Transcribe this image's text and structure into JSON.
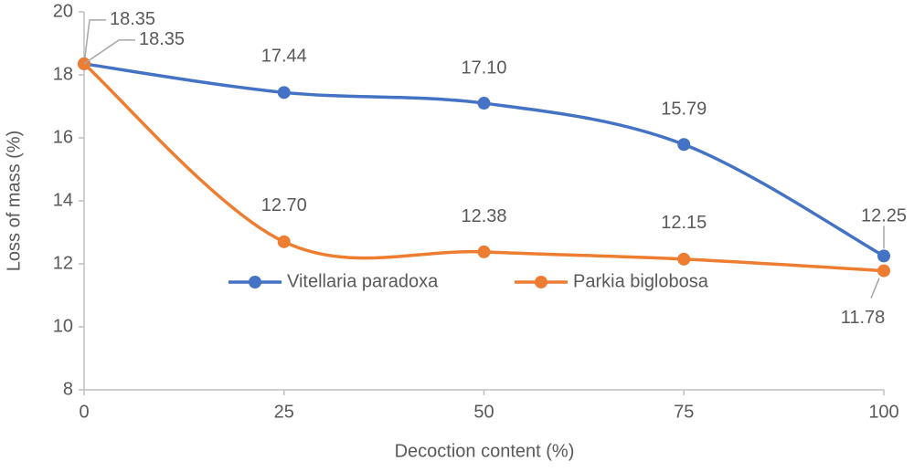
{
  "chart_data": {
    "type": "line",
    "x_label": "Decoction content (%)",
    "y_label": "Loss of mass (%)",
    "x": [
      0,
      25,
      50,
      75,
      100
    ],
    "series": [
      {
        "name": "Vitellaria paradoxa",
        "color": "#4472c4",
        "values": [
          18.35,
          17.44,
          17.1,
          15.79,
          12.25
        ],
        "value_labels": [
          "18.35",
          "17.44",
          "17.10",
          "15.79",
          "12.25"
        ]
      },
      {
        "name": "Parkia biglobosa",
        "color": "#ed7d31",
        "values": [
          18.35,
          12.7,
          12.38,
          12.15,
          11.78
        ],
        "value_labels": [
          "18.35",
          "12.70",
          "12.38",
          "12.15",
          "11.78"
        ]
      }
    ],
    "xlim": [
      0,
      100
    ],
    "xticks": [
      0,
      25,
      50,
      75,
      100
    ],
    "ylim": [
      8,
      20
    ],
    "yticks": [
      8,
      10,
      12,
      14,
      16,
      18,
      20
    ],
    "smooth": true,
    "grid": false
  }
}
